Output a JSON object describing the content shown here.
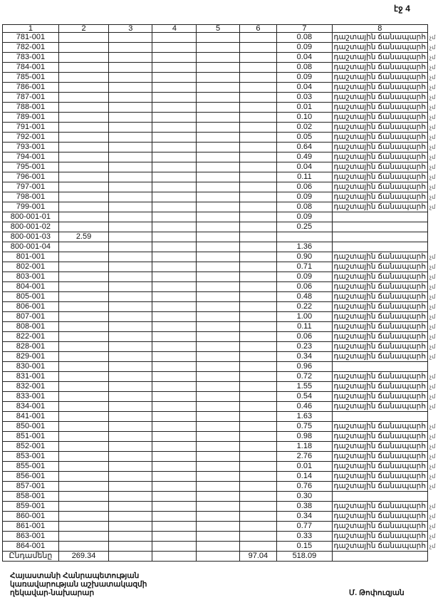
{
  "page_label": "էջ 4",
  "table": {
    "headers": [
      "1",
      "2",
      "3",
      "4",
      "5",
      "6",
      "7",
      "8"
    ],
    "row_suffix": "չմ",
    "rows": [
      [
        "781-001",
        "",
        "0.08",
        "դաշտային ճանապարհ"
      ],
      [
        "782-001",
        "",
        "0.09",
        "դաշտային ճանապարհ"
      ],
      [
        "783-001",
        "",
        "0.04",
        "դաշտային ճանապարհ"
      ],
      [
        "784-001",
        "",
        "0.08",
        "դաշտային ճանապարհ"
      ],
      [
        "785-001",
        "",
        "0.09",
        "դաշտային ճանապարհ"
      ],
      [
        "786-001",
        "",
        "0.04",
        "դաշտային ճանապարհ"
      ],
      [
        "787-001",
        "",
        "0.03",
        "դաշտային ճանապարհ"
      ],
      [
        "788-001",
        "",
        "0.01",
        "դաշտային ճանապարհ"
      ],
      [
        "789-001",
        "",
        "0.10",
        "դաշտային ճանապարհ"
      ],
      [
        "791-001",
        "",
        "0.02",
        "դաշտային ճանապարհ"
      ],
      [
        "792-001",
        "",
        "0.05",
        "դաշտային ճանապարհ"
      ],
      [
        "793-001",
        "",
        "0.64",
        "դաշտային ճանապարհ"
      ],
      [
        "794-001",
        "",
        "0.49",
        "դաշտային ճանապարհ"
      ],
      [
        "795-001",
        "",
        "0.04",
        "դաշտային ճանապարհ"
      ],
      [
        "796-001",
        "",
        "0.11",
        "դաշտային ճանապարհ"
      ],
      [
        "797-001",
        "",
        "0.06",
        "դաշտային ճանապարհ"
      ],
      [
        "798-001",
        "",
        "0.09",
        "դաշտային ճանապարհ"
      ],
      [
        "799-001",
        "",
        "0.08",
        "դաշտային ճանապարհ"
      ],
      [
        "800-001-01",
        "",
        "0.09",
        ""
      ],
      [
        "800-001-02",
        "",
        "0.25",
        ""
      ],
      [
        "800-001-03",
        "2.59",
        "",
        ""
      ],
      [
        "800-001-04",
        "",
        "1.36",
        ""
      ],
      [
        "801-001",
        "",
        "0.90",
        "դաշտային ճանապարհ"
      ],
      [
        "802-001",
        "",
        "0.71",
        "դաշտային ճանապարհ"
      ],
      [
        "803-001",
        "",
        "0.09",
        "դաշտային ճանապարհ"
      ],
      [
        "804-001",
        "",
        "0.06",
        "դաշտային ճանապարհ"
      ],
      [
        "805-001",
        "",
        "0.48",
        "դաշտային ճանապարհ"
      ],
      [
        "806-001",
        "",
        "0.22",
        "դաշտային ճանապարհ"
      ],
      [
        "807-001",
        "",
        "1.00",
        "դաշտային ճանապարհ"
      ],
      [
        "808-001",
        "",
        "0.11",
        "դաշտային ճանապարհ"
      ],
      [
        "822-001",
        "",
        "0.06",
        "դաշտային ճանապարհ"
      ],
      [
        "828-001",
        "",
        "0.23",
        "դաշտային ճանապարհ"
      ],
      [
        "829-001",
        "",
        "0.34",
        "դաշտային ճանապարհ"
      ],
      [
        "830-001",
        "",
        "0.96",
        ""
      ],
      [
        "831-001",
        "",
        "0.72",
        "դաշտային ճանապարհ"
      ],
      [
        "832-001",
        "",
        "1.55",
        "դաշտային ճանապարհ"
      ],
      [
        "833-001",
        "",
        "0.54",
        "դաշտային ճանապարհ"
      ],
      [
        "834-001",
        "",
        "0.46",
        "դաշտային ճանապարհ"
      ],
      [
        "841-001",
        "",
        "1.63",
        ""
      ],
      [
        "850-001",
        "",
        "0.75",
        "դաշտային ճանապարհ"
      ],
      [
        "851-001",
        "",
        "0.98",
        "դաշտային ճանապարհ"
      ],
      [
        "852-001",
        "",
        "1.18",
        "դաշտային ճանապարհ"
      ],
      [
        "853-001",
        "",
        "2.76",
        "դաշտային ճանապարհ"
      ],
      [
        "855-001",
        "",
        "0.01",
        "դաշտային ճանապարհ"
      ],
      [
        "856-001",
        "",
        "0.14",
        "դաշտային ճանապարհ"
      ],
      [
        "857-001",
        "",
        "0.76",
        "դաշտային ճանապարհ"
      ],
      [
        "858-001",
        "",
        "0.30",
        ""
      ],
      [
        "859-001",
        "",
        "0.38",
        "դաշտային ճանապարհ"
      ],
      [
        "860-001",
        "",
        "0.34",
        "դաշտային ճանապարհ"
      ],
      [
        "861-001",
        "",
        "0.77",
        "դաշտային ճանապարհ"
      ],
      [
        "863-001",
        "",
        "0.33",
        "դաշտային ճանապարհ"
      ],
      [
        "864-001",
        "",
        "0.15",
        "դաշտային ճանապարհ"
      ]
    ],
    "total": {
      "label": "Ընդամենը",
      "col2": "269.34",
      "col6": "97.04",
      "col7": "518.09"
    }
  },
  "footer": {
    "lines": [
      "Հայաստանի Հանրապետության",
      "կառավարության աշխատակազմի",
      "ղեկավար-նախարար"
    ],
    "signer": "Մ. Թոփուզյան"
  }
}
